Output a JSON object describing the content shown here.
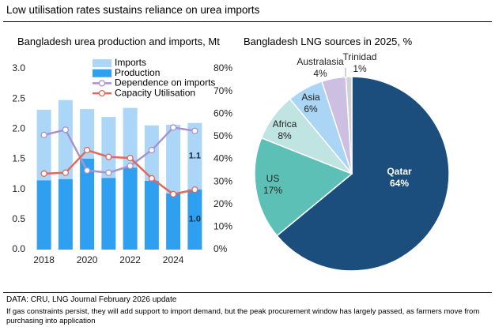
{
  "header": {
    "title": "Low utilisation rates sustains reliance on urea imports"
  },
  "chart_data": [
    {
      "type": "bar",
      "title": "Bangladesh urea production and imports, Mt",
      "categories": [
        "2018",
        null,
        "2020",
        null,
        "2022",
        null,
        "2024",
        null
      ],
      "stacked": true,
      "legend": "top",
      "series": [
        {
          "name": "Imports",
          "type": "bar",
          "color": "#abd6f8",
          "values": [
            1.17,
            1.31,
            0.82,
            1.01,
            0.99,
            0.92,
            1.14,
            1.1
          ],
          "value_labels": [
            null,
            null,
            null,
            null,
            null,
            null,
            null,
            "1.1"
          ]
        },
        {
          "name": "Production",
          "type": "bar",
          "color": "#2f9ff0",
          "values": [
            1.15,
            1.17,
            1.51,
            1.19,
            1.36,
            1.14,
            0.93,
            1.0
          ],
          "value_labels": [
            null,
            null,
            null,
            null,
            null,
            null,
            null,
            "1.0"
          ]
        },
        {
          "name": "Dependence on imports",
          "type": "line",
          "axis": "y2",
          "color": "#a993cf",
          "values": [
            50.7,
            53,
            35,
            34,
            37,
            44,
            54,
            52.5
          ]
        },
        {
          "name": "Capacity Utilisation",
          "type": "line",
          "axis": "y2",
          "color": "#e2675d",
          "values": [
            33.6,
            34,
            44,
            41,
            40.5,
            31.5,
            24.5,
            26.5
          ]
        }
      ],
      "ylim": [
        0,
        3
      ],
      "yticks": [
        {
          "value": 0,
          "label": "0.0"
        },
        {
          "value": 0.5,
          "label": "0.5"
        },
        {
          "value": 1,
          "label": "1.0"
        },
        {
          "value": 1.5,
          "label": "1.5"
        },
        {
          "value": 2,
          "label": "2.0"
        },
        {
          "value": 2.5,
          "label": "2.5"
        },
        {
          "value": 3,
          "label": "3.0"
        }
      ],
      "y2lim": [
        0,
        80
      ],
      "y2ticks": [
        {
          "value": 0,
          "label": "0%"
        },
        {
          "value": 10,
          "label": "10%"
        },
        {
          "value": 20,
          "label": "20%"
        },
        {
          "value": 30,
          "label": "30%"
        },
        {
          "value": 40,
          "label": "40%"
        },
        {
          "value": 50,
          "label": "50%"
        },
        {
          "value": 60,
          "label": "60%"
        },
        {
          "value": 70,
          "label": "70%"
        },
        {
          "value": 80,
          "label": "80%"
        }
      ]
    },
    {
      "type": "pie",
      "title": "Bangladesh LNG sources in 2025, %",
      "categories": [
        "Qatar",
        "US",
        "Africa",
        "Asia",
        "Australasia",
        "Trinidad"
      ],
      "values": [
        64,
        17,
        8,
        6,
        4,
        1
      ],
      "value_labels": [
        "64%",
        "17%",
        "8%",
        "6%",
        "4%",
        "1%"
      ],
      "colors": [
        "#1b4e7c",
        "#5dc0b6",
        "#bfe4e1",
        "#aad5f5",
        "#cdbfe1",
        "#d2d2d2"
      ]
    }
  ],
  "footer": {
    "source": "DATA: CRU, LNG Journal February 2026 update",
    "note": "If gas constraints persist, they will add support to import demand, but the peak procurement window has largely passed, as farmers move from purchasing into application"
  }
}
